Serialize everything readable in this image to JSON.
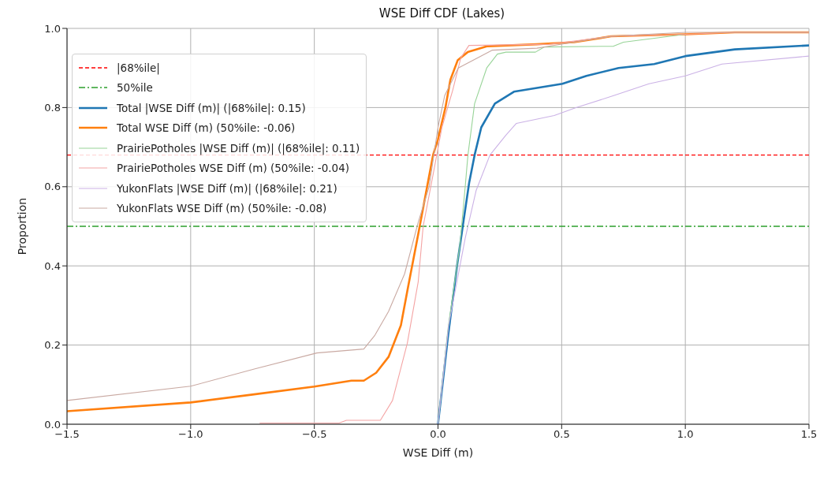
{
  "chart_data": {
    "type": "line",
    "title": "WSE Diff CDF (Lakes)",
    "xlabel": "WSE Diff (m)",
    "ylabel": "Proportion",
    "xlim": [
      -1.5,
      1.5
    ],
    "ylim": [
      0,
      1
    ],
    "xticks": [
      {
        "value": -1.5,
        "label": "−1.5"
      },
      {
        "value": -1,
        "label": "−1.0"
      },
      {
        "value": -0.5,
        "label": "−0.5"
      },
      {
        "value": 0,
        "label": "0.0"
      },
      {
        "value": 0.5,
        "label": "0.5"
      },
      {
        "value": 1,
        "label": "1.0"
      },
      {
        "value": 1.5,
        "label": "1.5"
      }
    ],
    "yticks": [
      {
        "value": 0,
        "label": "0.0"
      },
      {
        "value": 0.2,
        "label": "0.2"
      },
      {
        "value": 0.4,
        "label": "0.4"
      },
      {
        "value": 0.6,
        "label": "0.6"
      },
      {
        "value": 0.8,
        "label": "0.8"
      },
      {
        "value": 1,
        "label": "1.0"
      }
    ],
    "grid": true,
    "legend": "top left",
    "ref_lines": [
      {
        "axis": "y",
        "value": 0.68,
        "label": "|68%ile|",
        "color": "#ff0000",
        "line_style": "dashed"
      },
      {
        "axis": "y",
        "value": 0.5,
        "label": "50%ile",
        "color": "#2ca02c",
        "line_style": "dashdot"
      }
    ],
    "series": [
      {
        "name": "Total |WSE Diff (m)| (|68%ile|: 0.15)",
        "color": "#1f77b4",
        "x": [
          0,
          0.04,
          0.077,
          0.1,
          0.126,
          0.148,
          0.175,
          0.23,
          0.307,
          0.405,
          0.503,
          0.6,
          0.73,
          0.874,
          1.0,
          1.2,
          1.5
        ],
        "values": [
          0,
          0.22,
          0.4,
          0.5,
          0.61,
          0.68,
          0.75,
          0.81,
          0.84,
          0.85,
          0.86,
          0.88,
          0.9,
          0.91,
          0.93,
          0.947,
          0.957
        ]
      },
      {
        "name": "Total WSE Diff (m) (50%ile: -0.06)",
        "color": "#ff7f0e",
        "x": [
          -1.5,
          -1.0,
          -0.75,
          -0.5,
          -0.35,
          -0.3,
          -0.25,
          -0.2,
          -0.15,
          -0.12,
          -0.08,
          -0.05,
          -0.02,
          0,
          0.03,
          0.05,
          0.08,
          0.12,
          0.2,
          0.4,
          0.55,
          0.7,
          1.0,
          1.2,
          1.5
        ],
        "values": [
          0.033,
          0.055,
          0.075,
          0.095,
          0.11,
          0.11,
          0.13,
          0.17,
          0.25,
          0.35,
          0.48,
          0.58,
          0.68,
          0.72,
          0.8,
          0.87,
          0.92,
          0.94,
          0.955,
          0.96,
          0.965,
          0.98,
          0.985,
          0.99,
          0.99
        ]
      },
      {
        "name": "PrairiePotholes |WSE Diff (m)| (|68%ile|: 0.11)",
        "color": "#98d498",
        "x": [
          0,
          0.04,
          0.088,
          0.11,
          0.121,
          0.148,
          0.197,
          0.24,
          0.275,
          0.394,
          0.43,
          0.71,
          0.75,
          1.0
        ],
        "values": [
          0,
          0.24,
          0.45,
          0.6,
          0.68,
          0.81,
          0.9,
          0.935,
          0.94,
          0.94,
          0.953,
          0.955,
          0.965,
          0.985
        ]
      },
      {
        "name": "PrairiePotholes WSE Diff (m) (50%ile: -0.04)",
        "color": "#f4a3a3",
        "x": [
          -0.72,
          -0.4,
          -0.37,
          -0.233,
          -0.184,
          -0.124,
          -0.08,
          -0.06,
          -0.017,
          0.016,
          0.06,
          0.092,
          0.125,
          0.45,
          0.7,
          1.0,
          1.2,
          1.5
        ],
        "values": [
          0.003,
          0.003,
          0.01,
          0.01,
          0.06,
          0.205,
          0.36,
          0.5,
          0.64,
          0.75,
          0.845,
          0.925,
          0.957,
          0.96,
          0.98,
          0.985,
          0.99,
          0.99
        ]
      },
      {
        "name": "YukonFlats |WSE Diff (m)| (|68%ile|: 0.21)",
        "color": "#cbb2e6",
        "x": [
          0,
          0.043,
          0.11,
          0.154,
          0.21,
          0.274,
          0.317,
          0.47,
          0.558,
          0.71,
          0.853,
          1.0,
          1.148,
          1.5
        ],
        "values": [
          0,
          0.25,
          0.47,
          0.59,
          0.68,
          0.73,
          0.76,
          0.78,
          0.8,
          0.83,
          0.86,
          0.88,
          0.91,
          0.93
        ]
      },
      {
        "name": "YukonFlats WSE Diff (m) (50%ile: -0.08)",
        "color": "#c9a9a2",
        "x": [
          -1.5,
          -1.0,
          -0.74,
          -0.49,
          -0.3,
          -0.255,
          -0.2,
          -0.135,
          -0.08,
          -0.036,
          0,
          0.027,
          0.082,
          0.158,
          0.22,
          0.4,
          0.5,
          0.7,
          1.0,
          1.5
        ],
        "values": [
          0.06,
          0.096,
          0.14,
          0.18,
          0.19,
          0.225,
          0.285,
          0.38,
          0.51,
          0.6,
          0.75,
          0.83,
          0.9,
          0.925,
          0.945,
          0.95,
          0.96,
          0.98,
          0.99,
          0.99
        ]
      }
    ]
  }
}
